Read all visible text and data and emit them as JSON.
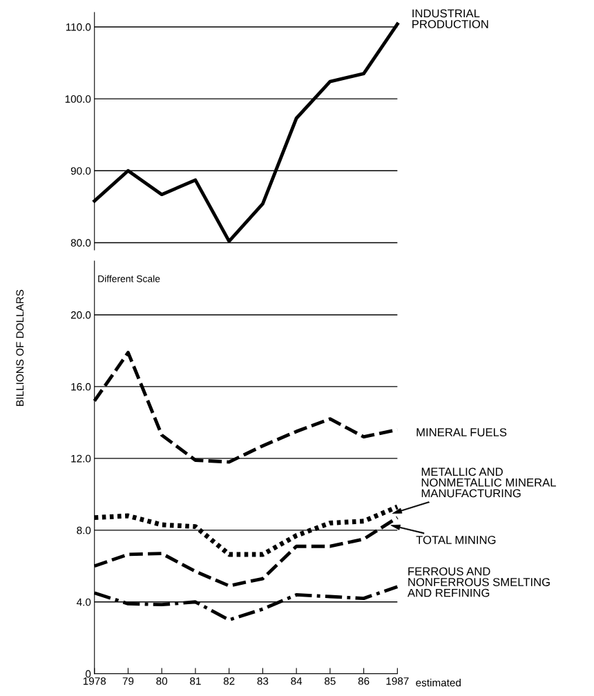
{
  "chart_data": [
    {
      "type": "line",
      "x": [
        1978,
        1979,
        1980,
        1981,
        1982,
        1983,
        1984,
        1985,
        1986,
        1987
      ],
      "series": [
        {
          "name": "INDUSTRIAL\nPRODUCTION",
          "color": "#000000",
          "line_style": "solid",
          "values": [
            85.8,
            90.0,
            86.7,
            88.7,
            80.2,
            85.4,
            97.3,
            102.4,
            103.5,
            110.4
          ]
        }
      ],
      "ylim": [
        79,
        112
      ],
      "yticks": [
        {
          "value": 80,
          "label": "80.0"
        },
        {
          "value": 90,
          "label": "90.0"
        },
        {
          "value": 100,
          "label": "100.0"
        },
        {
          "value": 110,
          "label": "110.0"
        }
      ],
      "xlim": [
        1978,
        1987
      ],
      "grid": "y",
      "tick_labels": "y",
      "ylabel": "BILLIONS OF DOLLARS"
    },
    {
      "type": "line",
      "x": [
        1978,
        1979,
        1980,
        1981,
        1982,
        1983,
        1984,
        1985,
        1986,
        1987
      ],
      "series": [
        {
          "name": "MINERAL FUELS",
          "color": "#000000",
          "line_style": "dashed",
          "values": [
            15.2,
            17.9,
            13.3,
            11.9,
            11.8,
            12.7,
            13.5,
            14.2,
            13.2,
            13.6
          ]
        },
        {
          "name": "METALLIC AND\nNONMETALLIC MINERAL\nMANUFACTURING",
          "color": "#000000",
          "line_style": "dotted",
          "values": [
            8.7,
            8.8,
            8.3,
            8.2,
            6.65,
            6.65,
            7.7,
            8.4,
            8.5,
            9.3
          ]
        },
        {
          "name": "TOTAL MINING",
          "color": "#000000",
          "line_style": "dashed",
          "values": [
            6.0,
            6.65,
            6.7,
            5.7,
            4.9,
            5.3,
            7.1,
            7.1,
            7.5,
            8.7
          ]
        },
        {
          "name": "FERROUS AND\nNONFERROUS SMELTING\nAND REFINING",
          "color": "#000000",
          "line_style": "dashdot",
          "values": [
            4.5,
            3.9,
            3.85,
            4.0,
            3.0,
            3.6,
            4.4,
            4.3,
            4.2,
            4.85
          ]
        }
      ],
      "ylim": [
        0,
        23
      ],
      "yticks": [
        0,
        {
          "value": 4,
          "label": "4.0"
        },
        {
          "value": 8,
          "label": "8.0"
        },
        {
          "value": 12,
          "label": "12.0"
        },
        {
          "value": 16,
          "label": "16.0"
        },
        {
          "value": 20,
          "label": "20.0"
        }
      ],
      "xlim": [
        1978,
        1987
      ],
      "xticks": [
        1978,
        {
          "value": 1979,
          "label": "79"
        },
        {
          "value": 1980,
          "label": "80"
        },
        {
          "value": 1981,
          "label": "81"
        },
        {
          "value": 1982,
          "label": "82"
        },
        {
          "value": 1983,
          "label": "83"
        },
        {
          "value": 1984,
          "label": "84"
        },
        {
          "value": 1985,
          "label": "85"
        },
        {
          "value": 1986,
          "label": "86"
        },
        1987
      ],
      "grid": "y",
      "annotations": [
        "Different Scale",
        "estimated"
      ]
    }
  ]
}
